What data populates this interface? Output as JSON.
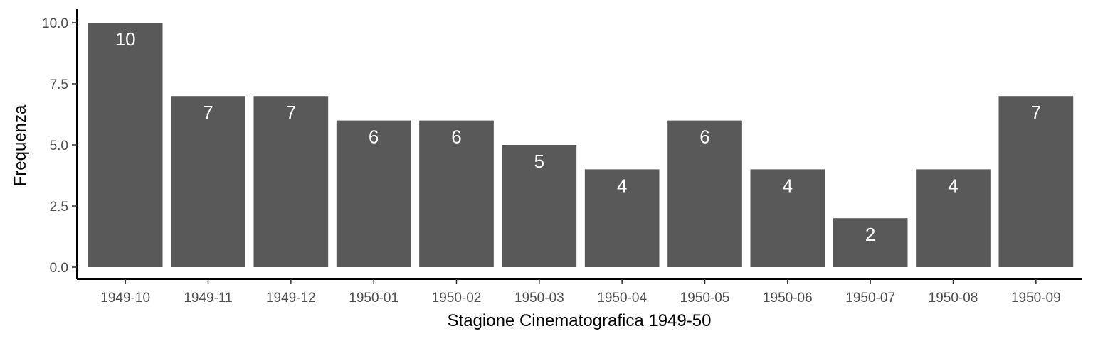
{
  "chart_data": {
    "type": "bar",
    "categories": [
      "1949-10",
      "1949-11",
      "1949-12",
      "1950-01",
      "1950-02",
      "1950-03",
      "1950-04",
      "1950-05",
      "1950-06",
      "1950-07",
      "1950-08",
      "1950-09"
    ],
    "values": [
      10,
      7,
      7,
      6,
      6,
      5,
      4,
      6,
      4,
      2,
      4,
      7
    ],
    "data_labels": [
      "10",
      "7",
      "7",
      "6",
      "6",
      "5",
      "4",
      "6",
      "4",
      "2",
      "4",
      "7"
    ],
    "title": "",
    "xlabel": "Stagione Cinematografica 1949-50",
    "ylabel": "Frequenza",
    "ylim": [
      0,
      10
    ],
    "yticks": [
      "0.0",
      "2.5",
      "5.0",
      "7.5",
      "10.0"
    ],
    "ytick_values": [
      0,
      2.5,
      5,
      7.5,
      10
    ],
    "grid": false,
    "legend": "none",
    "bar_color": "#595959",
    "label_color": "#ffffff",
    "axis_color": "#000000"
  }
}
